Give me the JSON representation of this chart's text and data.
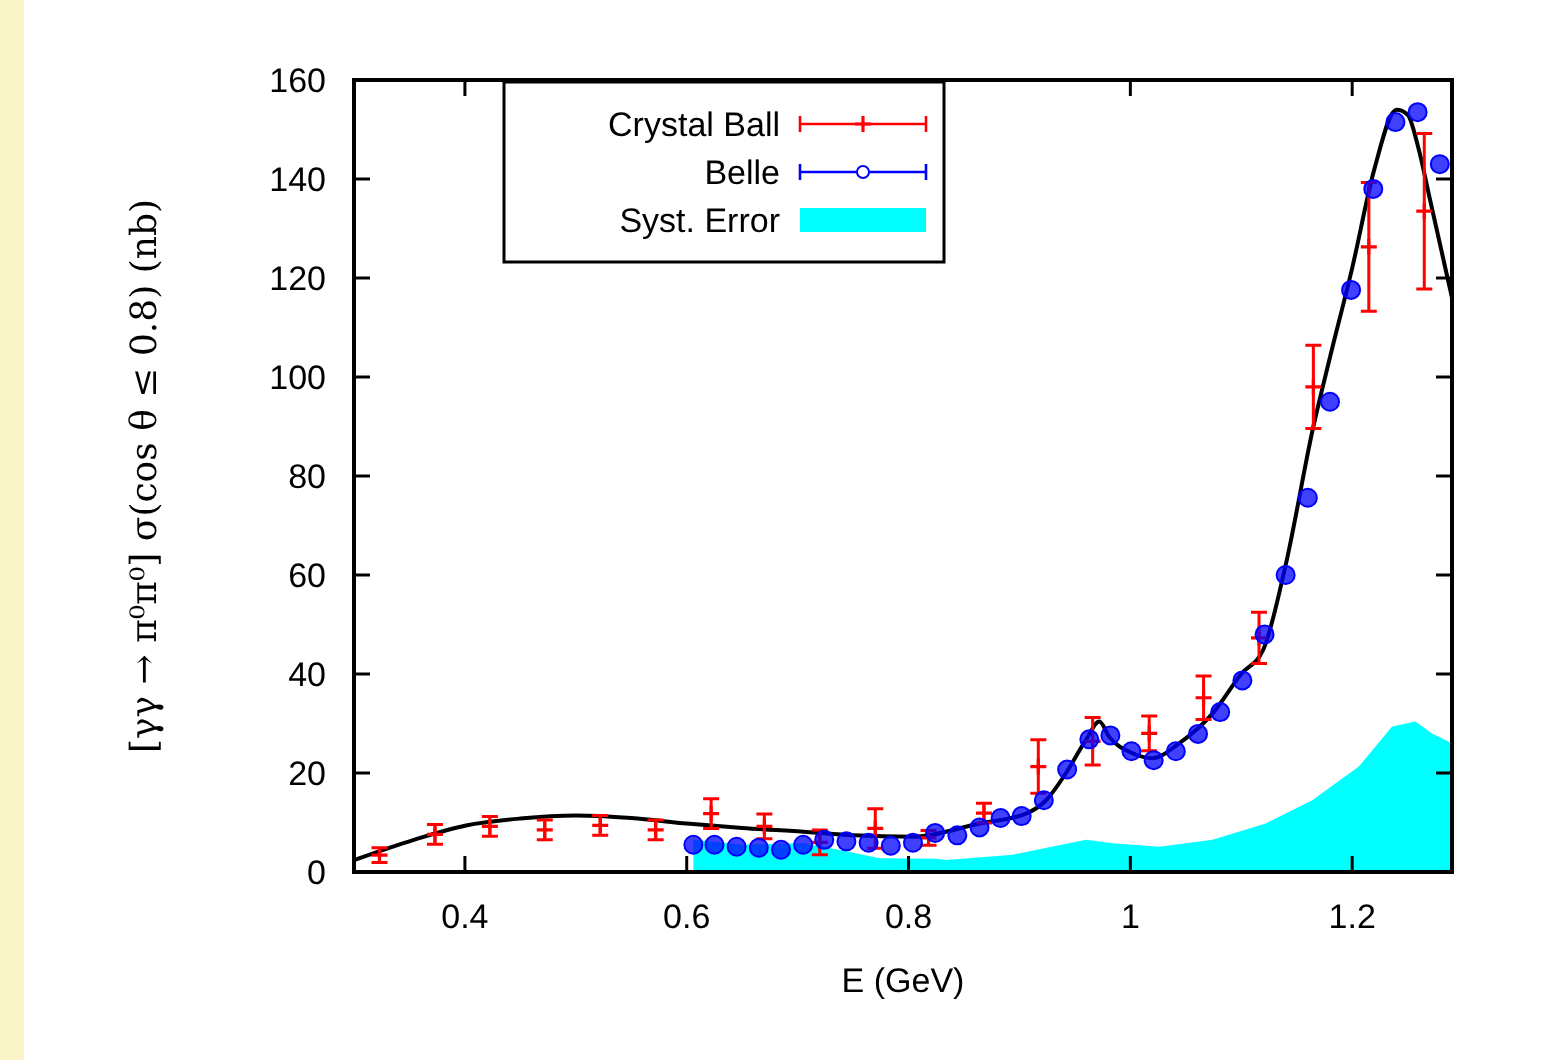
{
  "chart_data": {
    "type": "scatter",
    "xlabel": "E (GeV)",
    "ylabel": "[γγ → π⁰π⁰]   σ(cos θ ≤ 0.8) (nb)",
    "xlim": [
      0.3,
      1.29
    ],
    "ylim": [
      0,
      160
    ],
    "xticks": [
      0.4,
      0.6,
      0.8,
      {
        "value": 1,
        "label": "1"
      },
      1.2
    ],
    "yticks": [
      0,
      20,
      40,
      60,
      80,
      100,
      120,
      140,
      160
    ],
    "grid": false,
    "legend": "top left",
    "series": [
      {
        "name": "Syst. Error",
        "type": "area",
        "color": "#00ffff",
        "x": [
          0.606,
          0.65,
          0.705,
          0.744,
          0.774,
          0.826,
          0.834,
          0.894,
          0.96,
          0.984,
          1.026,
          1.074,
          1.122,
          1.164,
          1.206,
          1.236,
          1.257,
          1.272,
          1.29
        ],
        "values": [
          6.5,
          5.5,
          5.8,
          4.2,
          2.8,
          2.7,
          2.4,
          3.5,
          6.5,
          5.8,
          5.1,
          6.5,
          9.8,
          14.5,
          21.3,
          29.4,
          30.4,
          28,
          26
        ]
      },
      {
        "type": "line",
        "color": "#000000",
        "marker": "none",
        "line_style": "solid",
        "x": [
          0.3,
          0.354,
          0.401,
          0.45,
          0.5,
          0.55,
          0.6,
          0.65,
          0.708,
          0.75,
          0.804,
          0.864,
          0.906,
          0.924,
          0.942,
          0.96,
          0.972,
          0.981,
          1.002,
          1.02,
          1.044,
          1.074,
          1.1,
          1.12,
          1.14,
          1.165,
          1.18,
          1.2,
          1.22,
          1.24,
          1.25,
          1.26,
          1.27,
          1.28,
          1.29
        ],
        "values": [
          2.4,
          6.5,
          9.4,
          10.8,
          11.4,
          10.9,
          9.8,
          8.9,
          8.1,
          7.4,
          7.1,
          9.8,
          11.8,
          14.5,
          20,
          26.7,
          30.4,
          27.3,
          24,
          23,
          26,
          32,
          40,
          45,
          62,
          90,
          104,
          122,
          142,
          154,
          153,
          146,
          136,
          126,
          116
        ]
      },
      {
        "name": "Crystal Ball",
        "color": "#ff0000",
        "marker": "cross",
        "x": [
          0.323,
          0.373,
          0.4225,
          0.472,
          0.522,
          0.572,
          0.622,
          0.67,
          0.72,
          0.77,
          0.818,
          0.868,
          0.917,
          0.966,
          1.017,
          1.066,
          1.116,
          1.165,
          1.215,
          1.265
        ],
        "values": [
          3.4,
          7.6,
          9.2,
          8.5,
          9.4,
          8.5,
          11.8,
          9.2,
          6,
          8.8,
          6.9,
          11.9,
          21.3,
          26.4,
          28,
          35.2,
          47.3,
          98,
          126.3,
          133.5
        ],
        "errors": [
          1.5,
          2,
          2,
          2,
          2,
          2,
          3,
          2.5,
          2.5,
          4,
          1.5,
          2,
          5.4,
          4.8,
          3.5,
          4.4,
          5.2,
          8.4,
          13,
          15.7
        ]
      },
      {
        "name": "Belle",
        "color": "#0000ff",
        "marker": "circle",
        "x": [
          0.606,
          0.625,
          0.645,
          0.665,
          0.685,
          0.705,
          0.724,
          0.744,
          0.764,
          0.784,
          0.804,
          0.824,
          0.844,
          0.864,
          0.883,
          0.902,
          0.922,
          0.943,
          0.963,
          0.982,
          1.001,
          1.021,
          1.041,
          1.061,
          1.081,
          1.101,
          1.121,
          1.14,
          1.16,
          1.18,
          1.199,
          1.219,
          1.239,
          1.259,
          1.279
        ],
        "values": [
          5.5,
          5.5,
          5.1,
          4.9,
          4.5,
          5.5,
          6.5,
          6.2,
          5.9,
          5.3,
          5.9,
          7.9,
          7.4,
          9,
          10.9,
          11.3,
          14.5,
          20.7,
          26.8,
          27.6,
          24.4,
          22.6,
          24.4,
          27.9,
          32.3,
          38.7,
          48,
          60,
          75.6,
          95,
          117.6,
          138,
          151.5,
          153.5,
          143
        ]
      }
    ]
  }
}
